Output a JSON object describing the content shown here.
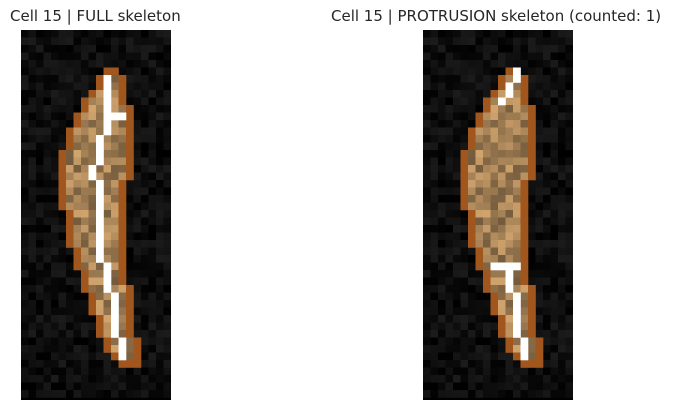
{
  "panels": [
    {
      "title": "Cell 15 | FULL skeleton",
      "variant": "full"
    },
    {
      "title": "Cell 15 | PROTRUSION skeleton (counted: 1)",
      "variant": "protrusion"
    }
  ],
  "colors": {
    "background": "#000000",
    "outline": "#a0561c",
    "cell_fill": "#c89a66",
    "skeleton": "#ffffff"
  }
}
